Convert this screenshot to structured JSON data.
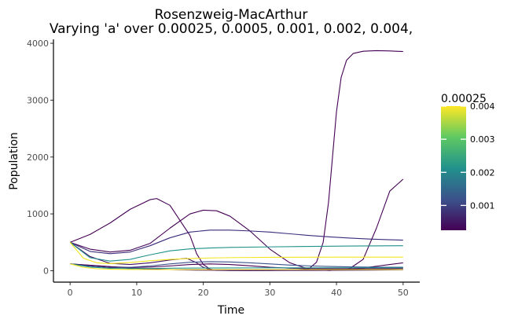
{
  "chart_data": {
    "type": "line",
    "title": "Rosenzweig-MacArthur",
    "subtitle": "Varying 'a' over 0.00025, 0.0005, 0.001, 0.002, 0.004,",
    "xlabel": "Time",
    "ylabel": "Population",
    "xlim": [
      -2.5,
      52.5
    ],
    "ylim": [
      -200,
      4070
    ],
    "x_ticks": [
      0,
      10,
      20,
      30,
      40,
      50
    ],
    "x_tick_labels": [
      "0",
      "10",
      "20",
      "30",
      "40",
      "50"
    ],
    "y_ticks": [
      0,
      1000,
      2000,
      3000,
      4000
    ],
    "y_tick_labels": [
      "0",
      "1000",
      "2000",
      "3000",
      "4000"
    ],
    "grid": false,
    "legend": {
      "title": "0.00025",
      "placement": "right",
      "type": "colorbar",
      "range": [
        0.00025,
        0.004
      ],
      "ticks": [
        0.001,
        0.002,
        0.003,
        0.004
      ],
      "tick_labels": [
        "0.001",
        "0.002",
        "0.003",
        "0.004"
      ],
      "colors": [
        "#440154",
        "#3b528b",
        "#21918c",
        "#5ec962",
        "#fde725"
      ]
    },
    "series": [
      {
        "color": "#440154",
        "x": [
          0,
          3,
          6,
          9,
          12,
          13,
          15,
          18,
          19,
          20,
          21,
          22,
          24,
          27,
          30,
          33,
          35,
          36,
          37,
          38,
          38.8,
          39.4,
          40,
          40.7,
          41.5,
          42.5,
          44,
          46,
          48,
          50
        ],
        "values": [
          500,
          640,
          840,
          1080,
          1250,
          1270,
          1150,
          620,
          300,
          110,
          30,
          8,
          5,
          5,
          7,
          12,
          25,
          50,
          150,
          500,
          1200,
          2000,
          2800,
          3400,
          3700,
          3820,
          3860,
          3870,
          3865,
          3855
        ]
      },
      {
        "color": "#440154",
        "x": [
          0,
          4,
          8,
          12,
          16,
          19,
          22,
          25,
          28,
          31,
          34,
          37,
          40,
          42,
          44,
          46,
          48,
          50
        ],
        "values": [
          120,
          90,
          55,
          30,
          18,
          12,
          10,
          9,
          9,
          10,
          12,
          15,
          20,
          30,
          50,
          80,
          110,
          140
        ]
      },
      {
        "color": "#440154",
        "x": [
          0,
          3,
          6,
          9,
          12,
          15,
          18,
          20,
          22,
          24,
          27,
          30,
          33,
          36,
          39,
          42,
          44,
          46,
          48,
          50
        ],
        "values": [
          500,
          380,
          330,
          360,
          480,
          750,
          1000,
          1065,
          1055,
          960,
          700,
          380,
          140,
          20,
          5,
          40,
          200,
          750,
          1400,
          1610
        ]
      },
      {
        "color": "#440154",
        "x": [
          0,
          3,
          6,
          9,
          12,
          15,
          18,
          21,
          24,
          27,
          30,
          33,
          36,
          39,
          42,
          45,
          48,
          50
        ],
        "values": [
          120,
          95,
          70,
          58,
          65,
          85,
          110,
          120,
          110,
          88,
          62,
          45,
          38,
          36,
          36,
          37,
          38,
          39
        ]
      },
      {
        "color": "#471365",
        "x": [
          0,
          3,
          6,
          9,
          12,
          15,
          17.5,
          19,
          20,
          21,
          22,
          24,
          27,
          30,
          33,
          36,
          39,
          42,
          45,
          48,
          50
        ],
        "values": [
          500,
          250,
          130,
          110,
          140,
          190,
          220,
          140,
          60,
          25,
          12,
          6,
          5,
          5,
          6,
          7,
          8,
          10,
          12,
          15,
          17
        ]
      },
      {
        "color": "#3b2a7a",
        "x": [
          0,
          3,
          6,
          9,
          12,
          15,
          18,
          21,
          24,
          27,
          30,
          33,
          36,
          39,
          42,
          45,
          48,
          50
        ],
        "values": [
          500,
          340,
          300,
          330,
          440,
          580,
          680,
          715,
          715,
          700,
          680,
          650,
          620,
          595,
          575,
          558,
          545,
          538
        ]
      },
      {
        "color": "#3b528b",
        "x": [
          0,
          3,
          6,
          9,
          12,
          15,
          18,
          21,
          24,
          27,
          30,
          33,
          36,
          39,
          42,
          45,
          48,
          50
        ],
        "values": [
          120,
          80,
          55,
          60,
          85,
          120,
          150,
          160,
          155,
          140,
          120,
          100,
          85,
          75,
          68,
          64,
          62,
          61
        ]
      },
      {
        "color": "#21918c",
        "x": [
          0,
          3,
          6,
          9,
          12,
          15,
          18,
          21,
          24,
          30,
          36,
          42,
          50
        ],
        "values": [
          500,
          230,
          170,
          200,
          280,
          350,
          385,
          400,
          410,
          420,
          428,
          435,
          440
        ]
      },
      {
        "color": "#21918c",
        "x": [
          0,
          3,
          6,
          9,
          12,
          15,
          20,
          25,
          30,
          40,
          50
        ],
        "values": [
          120,
          65,
          42,
          38,
          40,
          44,
          48,
          50,
          51,
          52,
          52
        ]
      },
      {
        "color": "#f2e51d",
        "x": [
          0,
          2,
          4,
          6,
          9,
          12,
          15,
          18,
          21,
          25,
          30,
          40,
          50
        ],
        "values": [
          500,
          220,
          140,
          125,
          145,
          175,
          200,
          215,
          225,
          232,
          236,
          240,
          240
        ]
      },
      {
        "color": "#fde725",
        "x": [
          0,
          2,
          4,
          6,
          9,
          12,
          15,
          20,
          25,
          30,
          40,
          50
        ],
        "values": [
          120,
          60,
          35,
          27,
          22,
          21,
          21,
          21,
          21,
          21,
          21,
          21
        ]
      }
    ]
  }
}
